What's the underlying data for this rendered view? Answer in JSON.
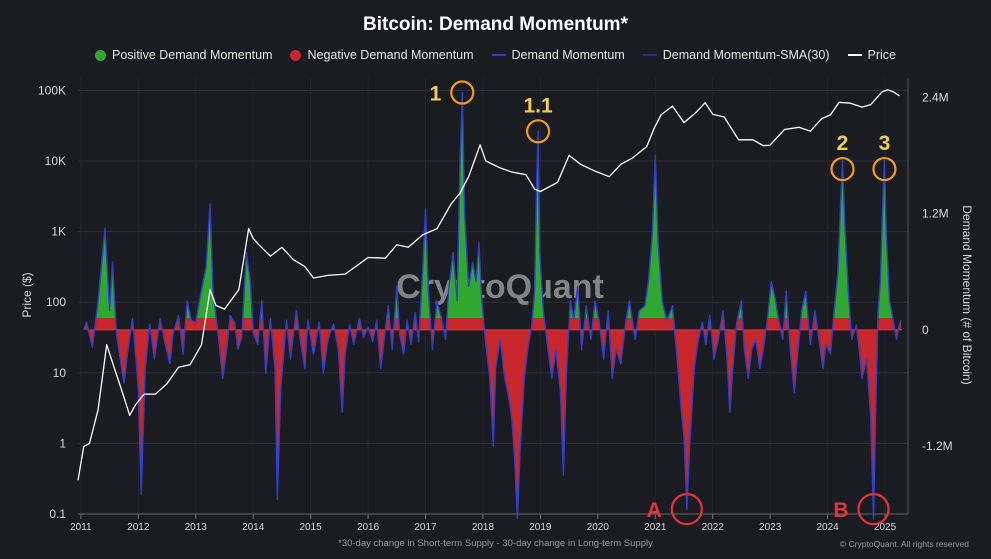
{
  "chart_data": {
    "type": "area",
    "title": "Bitcoin: Demand Momentum*",
    "legend": [
      {
        "label": "Positive Demand Momentum",
        "kind": "dot",
        "color": "#2ea82e"
      },
      {
        "label": "Negative Demand Momentum",
        "kind": "dot",
        "color": "#c8262b"
      },
      {
        "label": "Demand Momentum",
        "kind": "line",
        "color": "#2f3fc8"
      },
      {
        "label": "Demand Momentum-SMA(30)",
        "kind": "line",
        "color": "#2a2f7a"
      },
      {
        "label": "Price",
        "kind": "line",
        "color": "#ffffff"
      }
    ],
    "legend_position": "top-center",
    "ylabel_left": "Price ($)",
    "ylabel_right": "Demand Momentum (# of Bitcoin)",
    "left_axis": {
      "scale": "log",
      "ticks": [
        "100K",
        "10K",
        "1K",
        "100",
        "10",
        "1",
        "0.1"
      ],
      "tick_values": [
        100000,
        10000,
        1000,
        100,
        10,
        1,
        0.1
      ],
      "range": [
        0.1,
        150000
      ]
    },
    "right_axis": {
      "scale": "linear",
      "ticks": [
        "2.4M",
        "1.2M",
        "0",
        "-1.2M"
      ],
      "tick_values": [
        2400000,
        1200000,
        0,
        -1200000
      ],
      "range": [
        -1900000,
        2600000
      ]
    },
    "x_ticks": [
      "2011",
      "2012",
      "2013",
      "2014",
      "2015",
      "2016",
      "2017",
      "2018",
      "2019",
      "2020",
      "2021",
      "2022",
      "2023",
      "2024",
      "2025"
    ],
    "x_range": [
      2010.95,
      2025.4
    ],
    "grid": true,
    "price_series": {
      "name": "Price",
      "points": [
        [
          2010.95,
          0.3
        ],
        [
          2011.05,
          0.9
        ],
        [
          2011.15,
          1.0
        ],
        [
          2011.3,
          3
        ],
        [
          2011.45,
          25
        ],
        [
          2011.55,
          14
        ],
        [
          2011.7,
          6
        ],
        [
          2011.85,
          2.5
        ],
        [
          2011.95,
          3.5
        ],
        [
          2012.1,
          5
        ],
        [
          2012.3,
          5
        ],
        [
          2012.5,
          7
        ],
        [
          2012.7,
          12
        ],
        [
          2012.9,
          13
        ],
        [
          2013.1,
          25
        ],
        [
          2013.25,
          150
        ],
        [
          2013.35,
          90
        ],
        [
          2013.5,
          80
        ],
        [
          2013.75,
          150
        ],
        [
          2013.92,
          1100
        ],
        [
          2014.0,
          800
        ],
        [
          2014.1,
          650
        ],
        [
          2014.3,
          450
        ],
        [
          2014.5,
          600
        ],
        [
          2014.7,
          400
        ],
        [
          2014.9,
          320
        ],
        [
          2015.05,
          220
        ],
        [
          2015.3,
          240
        ],
        [
          2015.6,
          250
        ],
        [
          2015.85,
          350
        ],
        [
          2016.0,
          430
        ],
        [
          2016.3,
          420
        ],
        [
          2016.5,
          650
        ],
        [
          2016.7,
          600
        ],
        [
          2016.95,
          900
        ],
        [
          2017.2,
          1100
        ],
        [
          2017.45,
          2500
        ],
        [
          2017.6,
          3500
        ],
        [
          2017.75,
          6000
        ],
        [
          2017.95,
          17000
        ],
        [
          2018.05,
          10000
        ],
        [
          2018.3,
          8000
        ],
        [
          2018.5,
          7000
        ],
        [
          2018.75,
          6400
        ],
        [
          2018.9,
          4000
        ],
        [
          2019.0,
          3700
        ],
        [
          2019.3,
          5000
        ],
        [
          2019.5,
          12000
        ],
        [
          2019.7,
          9000
        ],
        [
          2019.95,
          7200
        ],
        [
          2020.2,
          6000
        ],
        [
          2020.4,
          9000
        ],
        [
          2020.6,
          11000
        ],
        [
          2020.85,
          16000
        ],
        [
          2020.98,
          29000
        ],
        [
          2021.1,
          45000
        ],
        [
          2021.3,
          60000
        ],
        [
          2021.5,
          35000
        ],
        [
          2021.7,
          48000
        ],
        [
          2021.87,
          67000
        ],
        [
          2022.0,
          46000
        ],
        [
          2022.2,
          42000
        ],
        [
          2022.45,
          20000
        ],
        [
          2022.7,
          20000
        ],
        [
          2022.88,
          16500
        ],
        [
          2023.0,
          16800
        ],
        [
          2023.25,
          28000
        ],
        [
          2023.5,
          30000
        ],
        [
          2023.7,
          26500
        ],
        [
          2023.9,
          40000
        ],
        [
          2024.05,
          45000
        ],
        [
          2024.2,
          68000
        ],
        [
          2024.4,
          66000
        ],
        [
          2024.6,
          58000
        ],
        [
          2024.75,
          63000
        ],
        [
          2024.95,
          96000
        ],
        [
          2025.05,
          102000
        ],
        [
          2025.15,
          95000
        ],
        [
          2025.25,
          84000
        ]
      ]
    },
    "momentum_series": {
      "name": "Demand Momentum",
      "points": [
        [
          2011.05,
          0
        ],
        [
          2011.1,
          80000
        ],
        [
          2011.2,
          -180000
        ],
        [
          2011.3,
          300000
        ],
        [
          2011.42,
          1050000
        ],
        [
          2011.5,
          200000
        ],
        [
          2011.55,
          700000
        ],
        [
          2011.62,
          -50000
        ],
        [
          2011.75,
          -550000
        ],
        [
          2011.82,
          -200000
        ],
        [
          2011.9,
          120000
        ],
        [
          2012.0,
          -600000
        ],
        [
          2012.05,
          -1700000
        ],
        [
          2012.12,
          -400000
        ],
        [
          2012.2,
          60000
        ],
        [
          2012.28,
          -300000
        ],
        [
          2012.38,
          120000
        ],
        [
          2012.45,
          -100000
        ],
        [
          2012.55,
          -350000
        ],
        [
          2012.6,
          -50000
        ],
        [
          2012.7,
          150000
        ],
        [
          2012.78,
          -250000
        ],
        [
          2012.85,
          300000
        ],
        [
          2012.92,
          100000
        ],
        [
          2013.0,
          80000
        ],
        [
          2013.08,
          350000
        ],
        [
          2013.18,
          650000
        ],
        [
          2013.25,
          1300000
        ],
        [
          2013.3,
          400000
        ],
        [
          2013.4,
          -100000
        ],
        [
          2013.47,
          -500000
        ],
        [
          2013.55,
          -150000
        ],
        [
          2013.6,
          150000
        ],
        [
          2013.68,
          70000
        ],
        [
          2013.73,
          -200000
        ],
        [
          2013.8,
          -80000
        ],
        [
          2013.88,
          800000
        ],
        [
          2013.95,
          500000
        ],
        [
          2014.0,
          -30000
        ],
        [
          2014.08,
          -150000
        ],
        [
          2014.15,
          300000
        ],
        [
          2014.22,
          -450000
        ],
        [
          2014.3,
          120000
        ],
        [
          2014.38,
          -400000
        ],
        [
          2014.42,
          -1750000
        ],
        [
          2014.48,
          -600000
        ],
        [
          2014.58,
          100000
        ],
        [
          2014.65,
          -300000
        ],
        [
          2014.75,
          200000
        ],
        [
          2014.83,
          -150000
        ],
        [
          2014.9,
          -400000
        ],
        [
          2014.95,
          100000
        ],
        [
          2015.05,
          -250000
        ],
        [
          2015.15,
          80000
        ],
        [
          2015.22,
          -450000
        ],
        [
          2015.3,
          -100000
        ],
        [
          2015.4,
          60000
        ],
        [
          2015.48,
          -200000
        ],
        [
          2015.55,
          -850000
        ],
        [
          2015.6,
          -250000
        ],
        [
          2015.68,
          50000
        ],
        [
          2015.75,
          -150000
        ],
        [
          2015.85,
          120000
        ],
        [
          2015.92,
          -80000
        ],
        [
          2016.0,
          30000
        ],
        [
          2016.08,
          -120000
        ],
        [
          2016.15,
          100000
        ],
        [
          2016.22,
          -400000
        ],
        [
          2016.28,
          -100000
        ],
        [
          2016.35,
          250000
        ],
        [
          2016.42,
          -200000
        ],
        [
          2016.5,
          450000
        ],
        [
          2016.55,
          -50000
        ],
        [
          2016.62,
          -250000
        ],
        [
          2016.68,
          100000
        ],
        [
          2016.75,
          -150000
        ],
        [
          2016.82,
          180000
        ],
        [
          2016.88,
          -120000
        ],
        [
          2016.95,
          600000
        ],
        [
          2017.0,
          1250000
        ],
        [
          2017.05,
          400000
        ],
        [
          2017.12,
          -200000
        ],
        [
          2017.2,
          300000
        ],
        [
          2017.28,
          120000
        ],
        [
          2017.35,
          -100000
        ],
        [
          2017.4,
          400000
        ],
        [
          2017.48,
          800000
        ],
        [
          2017.55,
          300000
        ],
        [
          2017.6,
          1700000
        ],
        [
          2017.64,
          2450000
        ],
        [
          2017.68,
          1200000
        ],
        [
          2017.75,
          450000
        ],
        [
          2017.82,
          700000
        ],
        [
          2017.88,
          500000
        ],
        [
          2017.93,
          900000
        ],
        [
          2017.98,
          300000
        ],
        [
          2018.05,
          -150000
        ],
        [
          2018.12,
          -500000
        ],
        [
          2018.18,
          -1200000
        ],
        [
          2018.22,
          -400000
        ],
        [
          2018.3,
          -100000
        ],
        [
          2018.38,
          -500000
        ],
        [
          2018.45,
          -700000
        ],
        [
          2018.5,
          -900000
        ],
        [
          2018.55,
          -1300000
        ],
        [
          2018.6,
          -1950000
        ],
        [
          2018.65,
          -1200000
        ],
        [
          2018.72,
          -500000
        ],
        [
          2018.78,
          -200000
        ],
        [
          2018.85,
          50000
        ],
        [
          2018.9,
          400000
        ],
        [
          2018.93,
          1400000
        ],
        [
          2018.96,
          2050000
        ],
        [
          2018.99,
          800000
        ],
        [
          2019.05,
          200000
        ],
        [
          2019.12,
          -150000
        ],
        [
          2019.2,
          -500000
        ],
        [
          2019.27,
          -200000
        ],
        [
          2019.35,
          -650000
        ],
        [
          2019.4,
          -1500000
        ],
        [
          2019.45,
          -500000
        ],
        [
          2019.52,
          300000
        ],
        [
          2019.58,
          100000
        ],
        [
          2019.65,
          450000
        ],
        [
          2019.72,
          -200000
        ],
        [
          2019.8,
          250000
        ],
        [
          2019.88,
          -100000
        ],
        [
          2019.95,
          300000
        ],
        [
          2020.02,
          100000
        ],
        [
          2020.1,
          -300000
        ],
        [
          2020.18,
          200000
        ],
        [
          2020.25,
          -500000
        ],
        [
          2020.32,
          -200000
        ],
        [
          2020.4,
          -350000
        ],
        [
          2020.48,
          50000
        ],
        [
          2020.55,
          300000
        ],
        [
          2020.65,
          -100000
        ],
        [
          2020.72,
          200000
        ],
        [
          2020.82,
          250000
        ],
        [
          2020.88,
          500000
        ],
        [
          2020.95,
          1000000
        ],
        [
          2021.0,
          1800000
        ],
        [
          2021.05,
          900000
        ],
        [
          2021.12,
          300000
        ],
        [
          2021.2,
          100000
        ],
        [
          2021.3,
          250000
        ],
        [
          2021.38,
          -300000
        ],
        [
          2021.45,
          -800000
        ],
        [
          2021.5,
          -1100000
        ],
        [
          2021.55,
          -1850000
        ],
        [
          2021.6,
          -1200000
        ],
        [
          2021.68,
          -400000
        ],
        [
          2021.75,
          -100000
        ],
        [
          2021.82,
          80000
        ],
        [
          2021.88,
          -150000
        ],
        [
          2021.95,
          150000
        ],
        [
          2022.02,
          -300000
        ],
        [
          2022.1,
          -100000
        ],
        [
          2022.18,
          200000
        ],
        [
          2022.25,
          -300000
        ],
        [
          2022.3,
          -850000
        ],
        [
          2022.35,
          -400000
        ],
        [
          2022.42,
          80000
        ],
        [
          2022.5,
          300000
        ],
        [
          2022.55,
          -200000
        ],
        [
          2022.62,
          -500000
        ],
        [
          2022.68,
          -200000
        ],
        [
          2022.75,
          -100000
        ],
        [
          2022.82,
          -400000
        ],
        [
          2022.88,
          -200000
        ],
        [
          2022.95,
          100000
        ],
        [
          2023.02,
          500000
        ],
        [
          2023.08,
          350000
        ],
        [
          2023.15,
          100000
        ],
        [
          2023.22,
          -100000
        ],
        [
          2023.28,
          400000
        ],
        [
          2023.35,
          -200000
        ],
        [
          2023.42,
          -650000
        ],
        [
          2023.48,
          -250000
        ],
        [
          2023.55,
          200000
        ],
        [
          2023.62,
          400000
        ],
        [
          2023.7,
          -150000
        ],
        [
          2023.78,
          200000
        ],
        [
          2023.85,
          -100000
        ],
        [
          2023.92,
          -400000
        ],
        [
          2023.97,
          -150000
        ],
        [
          2024.05,
          -250000
        ],
        [
          2024.1,
          100000
        ],
        [
          2024.18,
          600000
        ],
        [
          2024.22,
          1200000
        ],
        [
          2024.26,
          1750000
        ],
        [
          2024.3,
          1100000
        ],
        [
          2024.36,
          400000
        ],
        [
          2024.42,
          -100000
        ],
        [
          2024.5,
          50000
        ],
        [
          2024.55,
          -200000
        ],
        [
          2024.6,
          -500000
        ],
        [
          2024.68,
          -300000
        ],
        [
          2024.75,
          -900000
        ],
        [
          2024.8,
          -1950000
        ],
        [
          2024.84,
          -800000
        ],
        [
          2024.88,
          200000
        ],
        [
          2024.92,
          500000
        ],
        [
          2024.96,
          1300000
        ],
        [
          2024.99,
          1750000
        ],
        [
          2025.02,
          1000000
        ],
        [
          2025.08,
          300000
        ],
        [
          2025.15,
          80000
        ],
        [
          2025.2,
          -100000
        ],
        [
          2025.25,
          60000
        ],
        [
          2025.28,
          100000
        ]
      ]
    },
    "annotations": [
      {
        "label": "1",
        "x": 2017.64,
        "y": 2450000,
        "color": "#f3d04b",
        "ring": "#f39a1e",
        "side": "left"
      },
      {
        "label": "1.1",
        "x": 2018.96,
        "y": 2050000,
        "color": "#f3d04b",
        "ring": "#f39a1e",
        "side": "top"
      },
      {
        "label": "2",
        "x": 2024.26,
        "y": 1660000,
        "color": "#f3d04b",
        "ring": "#f39a1e",
        "side": "top"
      },
      {
        "label": "3",
        "x": 2024.99,
        "y": 1660000,
        "color": "#f3d04b",
        "ring": "#f39a1e",
        "side": "top"
      },
      {
        "label": "A",
        "x": 2021.55,
        "y": -1850000,
        "color": "#e2343a",
        "ring": "#e2343a",
        "side": "left"
      },
      {
        "label": "B",
        "x": 2024.8,
        "y": -1850000,
        "color": "#e2343a",
        "ring": "#e2343a",
        "side": "left"
      }
    ],
    "footnote": "*30-day change in Short-term Supply - 30-day change in Long-term Supply",
    "credit": "© CryptoQuant. All rights reserved",
    "watermark": "CryptoQuant"
  }
}
